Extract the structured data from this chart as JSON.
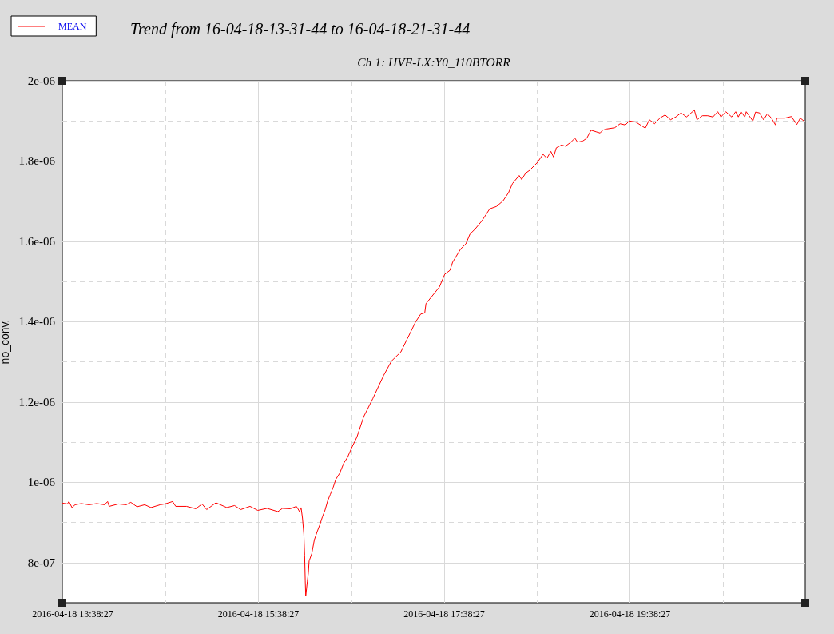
{
  "chart_data": {
    "type": "line",
    "title": "Trend from 16-04-18-13-31-44 to 16-04-18-21-31-44",
    "subtitle": "Ch 1: HVE-LX:Y0_110BTORR",
    "ylabel": "no_conv.",
    "x": [
      "2016-04-18T13:32",
      "2016-04-18T13:35",
      "2016-04-18T13:36",
      "2016-04-18T13:38",
      "2016-04-18T13:40",
      "2016-04-18T13:44",
      "2016-04-18T13:49",
      "2016-04-18T13:54",
      "2016-04-18T13:59",
      "2016-04-18T14:01",
      "2016-04-18T14:02",
      "2016-04-18T14:08",
      "2016-04-18T14:13",
      "2016-04-18T14:16",
      "2016-04-18T14:20",
      "2016-04-18T14:25",
      "2016-04-18T14:29",
      "2016-04-18T14:35",
      "2016-04-18T14:38",
      "2016-04-18T14:43",
      "2016-04-18T14:45",
      "2016-04-18T14:52",
      "2016-04-18T14:58",
      "2016-04-18T15:02",
      "2016-04-18T15:05",
      "2016-04-18T15:11",
      "2016-04-18T15:18",
      "2016-04-18T15:23",
      "2016-04-18T15:27",
      "2016-04-18T15:33",
      "2016-04-18T15:38",
      "2016-04-18T15:44",
      "2016-04-18T15:51",
      "2016-04-18T15:54",
      "2016-04-18T15:59",
      "2016-04-18T16:03",
      "2016-04-18T16:05",
      "2016-04-18T16:06",
      "2016-04-18T16:06:54",
      "2016-04-18T16:07:48",
      "2016-04-18T16:08:18",
      "2016-04-18T16:08:42",
      "2016-04-18T16:09:00",
      "2016-04-18T16:09:30",
      "2016-04-18T16:10:00",
      "2016-04-18T16:10:42",
      "2016-04-18T16:11:12",
      "2016-04-18T16:12:54",
      "2016-04-18T16:14:36",
      "2016-04-18T16:16:24",
      "2016-04-18T16:18:06",
      "2016-04-18T16:19:48",
      "2016-04-18T16:21:30",
      "2016-04-18T16:23:12",
      "2016-04-18T16:24:54",
      "2016-04-18T16:26:42",
      "2016-04-18T16:28:24",
      "2016-04-18T16:31:00",
      "2016-04-18T16:33:30",
      "2016-04-18T16:36:06",
      "2016-04-18T16:38:42",
      "2016-04-18T16:42:06",
      "2016-04-18T16:46:24",
      "2016-04-18T16:52:24",
      "2016-04-18T16:59:18",
      "2016-04-18T17:04:24",
      "2016-04-18T17:10:30",
      "2016-04-18T17:13:00",
      "2016-04-18T17:15:36",
      "2016-04-18T17:19:54",
      "2016-04-18T17:23:18",
      "2016-04-18T17:25:54",
      "2016-04-18T17:26:42",
      "2016-04-18T17:35:18",
      "2016-04-18T17:38:48",
      "2016-04-18T17:42:12",
      "2016-04-18T17:43:54",
      "2016-04-18T17:49:06",
      "2016-04-18T17:52:30",
      "2016-04-18T17:55:06",
      "2016-04-18T17:58:30",
      "2016-04-18T18:02:48",
      "2016-04-18T18:07:54",
      "2016-04-18T18:12:18",
      "2016-04-18T18:16:30",
      "2016-04-18T18:20:00",
      "2016-04-18T18:22:36",
      "2016-04-18T18:26:54",
      "2016-04-18T18:28:30",
      "2016-04-18T18:31:06",
      "2016-04-18T18:33:42",
      "2016-04-18T18:38:48",
      "2016-04-18T18:42:18",
      "2016-04-18T18:44:48",
      "2016-04-18T18:47:24",
      "2016-04-18T18:49:06",
      "2016-04-18T18:50:54",
      "2016-04-18T18:54:18",
      "2016-04-18T18:56:48",
      "2016-04-18T19:00:18",
      "2016-04-18T19:02:54",
      "2016-04-18T19:04:36",
      "2016-04-18T19:08:00",
      "2016-04-18T19:10:36",
      "2016-04-18T19:13:18",
      "2016-04-18T19:16:36",
      "2016-04-18T19:19:12",
      "2016-04-18T19:20:54",
      "2016-04-18T19:23:30",
      "2016-04-18T19:28:36",
      "2016-04-18T19:32:06",
      "2016-04-18T19:35:30",
      "2016-04-18T19:38:06",
      "2016-04-18T19:42:24",
      "2016-04-18T19:48:24",
      "2016-04-18T19:51:00",
      "2016-04-18T19:54:24",
      "2016-04-18T19:57:48",
      "2016-04-18T20:01:12",
      "2016-04-18T20:04:42",
      "2016-04-18T20:08:06",
      "2016-04-18T20:11:30",
      "2016-04-18T20:15:00",
      "2016-04-18T20:20:06",
      "2016-04-18T20:21:48",
      "2016-04-18T20:25:18",
      "2016-04-18T20:28:42",
      "2016-04-18T20:32:06",
      "2016-04-18T20:35:12",
      "2016-04-18T20:37:18",
      "2016-04-18T20:40:24",
      "2016-04-18T20:44:12",
      "2016-04-18T20:46:48",
      "2016-04-18T20:48:30",
      "2016-04-18T20:50:12",
      "2016-04-18T20:52:42",
      "2016-04-18T20:53:36",
      "2016-04-18T20:57:54",
      "2016-04-18T20:59:36",
      "2016-04-18T21:02:12",
      "2016-04-18T21:04:48",
      "2016-04-18T21:07:18",
      "2016-04-18T21:09:54",
      "2016-04-18T21:12:30",
      "2016-04-18T21:13:24",
      "2016-04-18T21:18:30",
      "2016-04-18T21:22:48",
      "2016-04-18T21:26:18",
      "2016-04-18T21:28:30",
      "2016-04-18T21:31:12"
    ],
    "series": [
      {
        "name": "MEAN",
        "color": "#ff0000",
        "values": [
          9.48e-07,
          9.46e-07,
          9.52e-07,
          9.37e-07,
          9.44e-07,
          9.47e-07,
          9.44e-07,
          9.47e-07,
          9.44e-07,
          9.52e-07,
          9.4e-07,
          9.46e-07,
          9.44e-07,
          9.5e-07,
          9.39e-07,
          9.44e-07,
          9.37e-07,
          9.44e-07,
          9.46e-07,
          9.52e-07,
          9.4e-07,
          9.4e-07,
          9.34e-07,
          9.46e-07,
          9.32e-07,
          9.49e-07,
          9.37e-07,
          9.42e-07,
          9.32e-07,
          9.4e-07,
          9.3e-07,
          9.35e-07,
          9.27e-07,
          9.35e-07,
          9.34e-07,
          9.4e-07,
          9.27e-07,
          9.37e-07,
          9.11e-07,
          8.71e-07,
          8.18e-07,
          7.54e-07,
          7.16e-07,
          7.34e-07,
          7.52e-07,
          7.74e-07,
          8.04e-07,
          8.22e-07,
          8.57e-07,
          8.77e-07,
          8.94e-07,
          9.14e-07,
          9.31e-07,
          9.54e-07,
          9.7e-07,
          9.87e-07,
          1.007e-06,
          1.023e-06,
          1.047e-06,
          1.063e-06,
          1.086e-06,
          1.113e-06,
          1.163e-06,
          1.209e-06,
          1.266e-06,
          1.302e-06,
          1.325e-06,
          1.345e-06,
          1.365e-06,
          1.399e-06,
          1.419e-06,
          1.422e-06,
          1.445e-06,
          1.486e-06,
          1.518e-06,
          1.528e-06,
          1.548e-06,
          1.581e-06,
          1.594e-06,
          1.618e-06,
          1.631e-06,
          1.651e-06,
          1.681e-06,
          1.687e-06,
          1.701e-06,
          1.721e-06,
          1.744e-06,
          1.764e-06,
          1.754e-06,
          1.77e-06,
          1.777e-06,
          1.797e-06,
          1.817e-06,
          1.807e-06,
          1.824e-06,
          1.81e-06,
          1.833e-06,
          1.84e-06,
          1.837e-06,
          1.847e-06,
          1.857e-06,
          1.847e-06,
          1.85e-06,
          1.857e-06,
          1.877e-06,
          1.873e-06,
          1.87e-06,
          1.877e-06,
          1.88e-06,
          1.883e-06,
          1.893e-06,
          1.89e-06,
          1.9e-06,
          1.897e-06,
          1.882e-06,
          1.903e-06,
          1.893e-06,
          1.907e-06,
          1.915e-06,
          1.903e-06,
          1.91e-06,
          1.92e-06,
          1.91e-06,
          1.927e-06,
          1.903e-06,
          1.913e-06,
          1.913e-06,
          1.91e-06,
          1.923e-06,
          1.91e-06,
          1.923e-06,
          1.91e-06,
          1.923e-06,
          1.91e-06,
          1.923e-06,
          1.91e-06,
          1.923e-06,
          1.9e-06,
          1.922e-06,
          1.92e-06,
          1.903e-06,
          1.918e-06,
          1.907e-06,
          1.89e-06,
          1.907e-06,
          1.907e-06,
          1.911e-06,
          1.891e-06,
          1.907e-06,
          1.899e-06
        ]
      }
    ],
    "xlim": [
      "2016-04-18T13:31:44",
      "2016-04-18T21:31:44"
    ],
    "xticks": [
      {
        "value": "2016-04-18T13:38:27",
        "label": "2016-04-18 13:38:27"
      },
      {
        "value": "2016-04-18T14:38:27",
        "label": null
      },
      {
        "value": "2016-04-18T15:38:27",
        "label": "2016-04-18 15:38:27"
      },
      {
        "value": "2016-04-18T16:38:27",
        "label": null
      },
      {
        "value": "2016-04-18T17:38:27",
        "label": "2016-04-18 17:38:27"
      },
      {
        "value": "2016-04-18T18:38:27",
        "label": null
      },
      {
        "value": "2016-04-18T19:38:27",
        "label": "2016-04-18 19:38:27"
      },
      {
        "value": "2016-04-18T20:38:27",
        "label": null
      }
    ],
    "ylim": [
      7e-07,
      2e-06
    ],
    "yticks": [
      {
        "value": 8e-07,
        "label": "8e-07"
      },
      {
        "value": 9e-07,
        "label": null
      },
      {
        "value": 1e-06,
        "label": "1e-06"
      },
      {
        "value": 1.1e-06,
        "label": null
      },
      {
        "value": 1.2e-06,
        "label": "1.2e-06"
      },
      {
        "value": 1.3e-06,
        "label": null
      },
      {
        "value": 1.4e-06,
        "label": "1.4e-06"
      },
      {
        "value": 1.5e-06,
        "label": null
      },
      {
        "value": 1.6e-06,
        "label": "1.6e-06"
      },
      {
        "value": 1.7e-06,
        "label": null
      },
      {
        "value": 1.8e-06,
        "label": "1.8e-06"
      },
      {
        "value": 1.9e-06,
        "label": null
      },
      {
        "value": 2e-06,
        "label": "2e-06"
      }
    ],
    "grid": true,
    "legend": "top left",
    "marker": "none",
    "line_style": "solid"
  }
}
